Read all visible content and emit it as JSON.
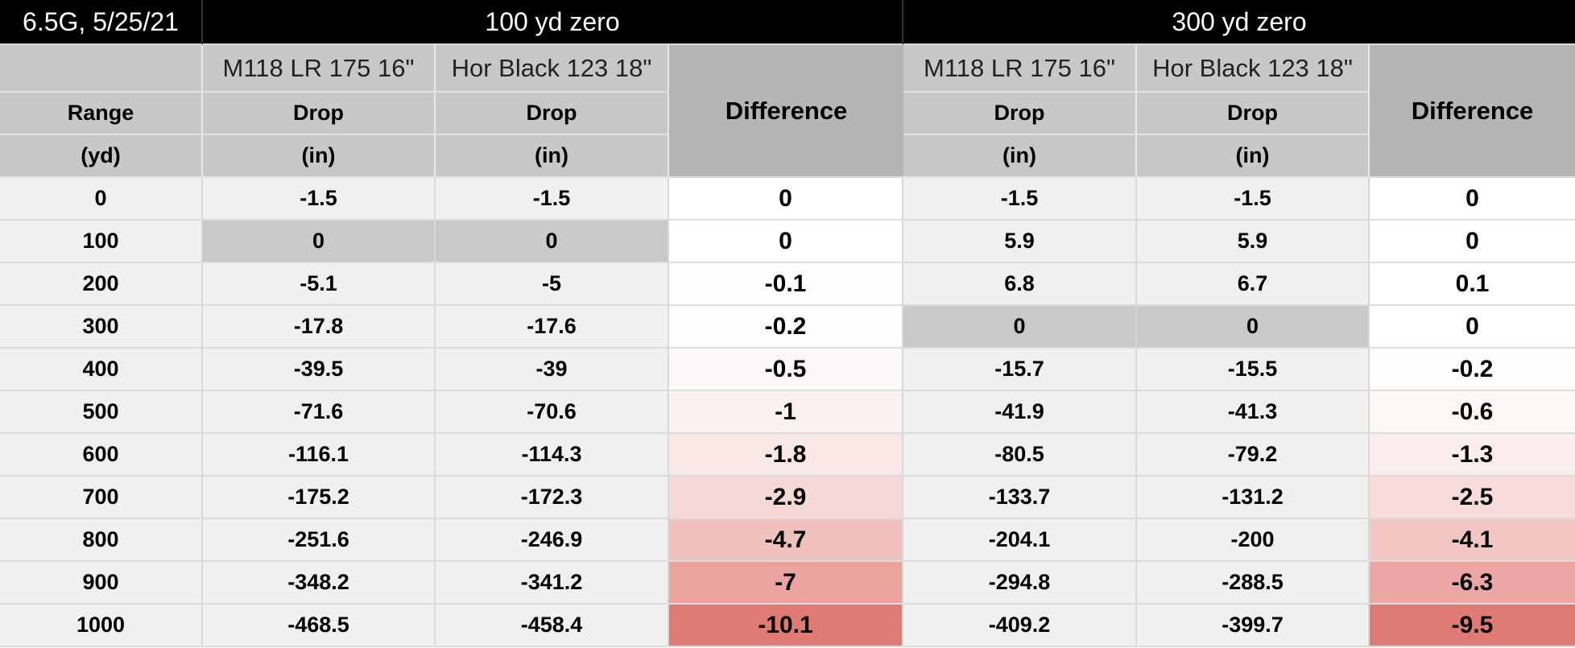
{
  "title_cell": "6.5G, 5/25/21",
  "groups": [
    "100 yd zero",
    "300 yd zero"
  ],
  "header": {
    "sub": [
      "M118 LR 175 16\"",
      "Hor Black 123 18\""
    ],
    "range_label": "Range",
    "range_unit": "(yd)",
    "drop_label": "Drop",
    "drop_unit": "(in)",
    "difference_label": "Difference"
  },
  "zero_highlight_color": "#c9c9c9",
  "diff_scale_max_color": "#e07a74",
  "rows": [
    {
      "range": "0",
      "a1": "-1.5",
      "b1": "-1.5",
      "d1": "0",
      "a2": "-1.5",
      "b2": "-1.5",
      "d2": "0"
    },
    {
      "range": "100",
      "a1": "0",
      "b1": "0",
      "d1": "0",
      "a2": "5.9",
      "b2": "5.9",
      "d2": "0"
    },
    {
      "range": "200",
      "a1": "-5.1",
      "b1": "-5",
      "d1": "-0.1",
      "a2": "6.8",
      "b2": "6.7",
      "d2": "0.1"
    },
    {
      "range": "300",
      "a1": "-17.8",
      "b1": "-17.6",
      "d1": "-0.2",
      "a2": "0",
      "b2": "0",
      "d2": "0"
    },
    {
      "range": "400",
      "a1": "-39.5",
      "b1": "-39",
      "d1": "-0.5",
      "a2": "-15.7",
      "b2": "-15.5",
      "d2": "-0.2"
    },
    {
      "range": "500",
      "a1": "-71.6",
      "b1": "-70.6",
      "d1": "-1",
      "a2": "-41.9",
      "b2": "-41.3",
      "d2": "-0.6"
    },
    {
      "range": "600",
      "a1": "-116.1",
      "b1": "-114.3",
      "d1": "-1.8",
      "a2": "-80.5",
      "b2": "-79.2",
      "d2": "-1.3"
    },
    {
      "range": "700",
      "a1": "-175.2",
      "b1": "-172.3",
      "d1": "-2.9",
      "a2": "-133.7",
      "b2": "-131.2",
      "d2": "-2.5"
    },
    {
      "range": "800",
      "a1": "-251.6",
      "b1": "-246.9",
      "d1": "-4.7",
      "a2": "-204.1",
      "b2": "-200",
      "d2": "-4.1"
    },
    {
      "range": "900",
      "a1": "-348.2",
      "b1": "-341.2",
      "d1": "-7",
      "a2": "-294.8",
      "b2": "-288.5",
      "d2": "-6.3"
    },
    {
      "range": "1000",
      "a1": "-468.5",
      "b1": "-458.4",
      "d1": "-10.1",
      "a2": "-409.2",
      "b2": "-399.7",
      "d2": "-9.5"
    }
  ]
}
